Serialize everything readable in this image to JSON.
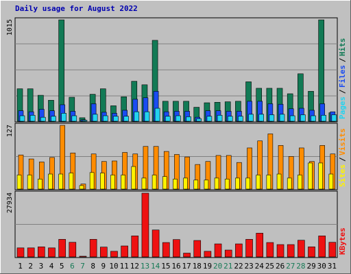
{
  "title": "Daily usage for August 2022",
  "colors": {
    "background": "#c0c0c0",
    "plot_bg": "#bfbfbf",
    "title": "#0000b0",
    "hits": "#127a55",
    "files": "#1a4cf2",
    "pages": "#22d3f0",
    "visits": "#ff8c00",
    "sites": "#fff200",
    "kbytes": "#ee1111",
    "weekend_label": "#167a56",
    "axis_label": "#000000"
  },
  "chart_data": [
    {
      "type": "bar",
      "panel": "hits-files-pages",
      "ylabel_top": "1015",
      "legend": [
        "Pages",
        "/",
        "Files",
        "/",
        "Hits"
      ],
      "categories": [
        "1",
        "2",
        "3",
        "4",
        "5",
        "6",
        "7",
        "8",
        "9",
        "10",
        "11",
        "12",
        "13",
        "14",
        "15",
        "16",
        "17",
        "18",
        "19",
        "20",
        "21",
        "22",
        "23",
        "24",
        "25",
        "26",
        "27",
        "28",
        "29",
        "30",
        "31"
      ],
      "ylim": [
        0,
        1015
      ],
      "series": [
        {
          "name": "Hits",
          "values": [
            325,
            325,
            260,
            210,
            1015,
            240,
            35,
            270,
            325,
            155,
            245,
            400,
            365,
            810,
            200,
            200,
            200,
            140,
            185,
            190,
            195,
            200,
            395,
            330,
            330,
            330,
            275,
            475,
            300,
            1015,
            85
          ]
        },
        {
          "name": "Files",
          "values": [
            105,
            95,
            120,
            105,
            165,
            100,
            15,
            175,
            90,
            80,
            110,
            220,
            235,
            300,
            95,
            100,
            100,
            40,
            105,
            105,
            100,
            100,
            200,
            200,
            175,
            170,
            125,
            130,
            110,
            175,
            95
          ]
        },
        {
          "name": "Pages",
          "values": [
            55,
            60,
            40,
            50,
            80,
            55,
            10,
            70,
            55,
            50,
            50,
            95,
            95,
            130,
            50,
            55,
            45,
            25,
            50,
            60,
            50,
            50,
            70,
            70,
            65,
            70,
            55,
            65,
            55,
            60,
            65
          ]
        }
      ]
    },
    {
      "type": "bar",
      "panel": "visits-sites",
      "ylabel_top": "127",
      "legend": [
        "Sites",
        "/",
        "Visits"
      ],
      "categories": [
        "1",
        "2",
        "3",
        "4",
        "5",
        "6",
        "7",
        "8",
        "9",
        "10",
        "11",
        "12",
        "13",
        "14",
        "15",
        "16",
        "17",
        "18",
        "19",
        "20",
        "21",
        "22",
        "23",
        "24",
        "25",
        "26",
        "27",
        "28",
        "29",
        "30",
        "31"
      ],
      "ylim": [
        0,
        127
      ],
      "series": [
        {
          "name": "Visits",
          "values": [
            68,
            60,
            54,
            63,
            127,
            72,
            10,
            70,
            55,
            56,
            73,
            70,
            85,
            85,
            75,
            69,
            64,
            49,
            55,
            67,
            67,
            53,
            82,
            96,
            110,
            87,
            65,
            82,
            55,
            87,
            70
          ]
        },
        {
          "name": "Sites",
          "values": [
            28,
            28,
            20,
            30,
            30,
            32,
            7,
            33,
            32,
            28,
            28,
            45,
            22,
            28,
            25,
            20,
            22,
            18,
            18,
            22,
            20,
            22,
            22,
            28,
            28,
            30,
            22,
            28,
            52,
            52,
            30
          ]
        }
      ]
    },
    {
      "type": "bar",
      "panel": "kbytes",
      "ylabel_top": "27934",
      "legend": [
        "KBytes"
      ],
      "categories": [
        "1",
        "2",
        "3",
        "4",
        "5",
        "6",
        "7",
        "8",
        "9",
        "10",
        "11",
        "12",
        "13",
        "14",
        "15",
        "16",
        "17",
        "18",
        "19",
        "20",
        "21",
        "22",
        "23",
        "24",
        "25",
        "26",
        "27",
        "28",
        "29",
        "30",
        "31"
      ],
      "ylim": [
        0,
        27934
      ],
      "series": [
        {
          "name": "KBytes",
          "values": [
            3950,
            3950,
            4400,
            3950,
            7700,
            6400,
            300,
            7700,
            4300,
            2450,
            4800,
            9200,
            27934,
            11800,
            6300,
            7600,
            1650,
            7200,
            2450,
            5700,
            3000,
            5700,
            7700,
            10400,
            6300,
            5400,
            5400,
            7300,
            4400,
            9200,
            6400
          ]
        }
      ]
    }
  ]
}
